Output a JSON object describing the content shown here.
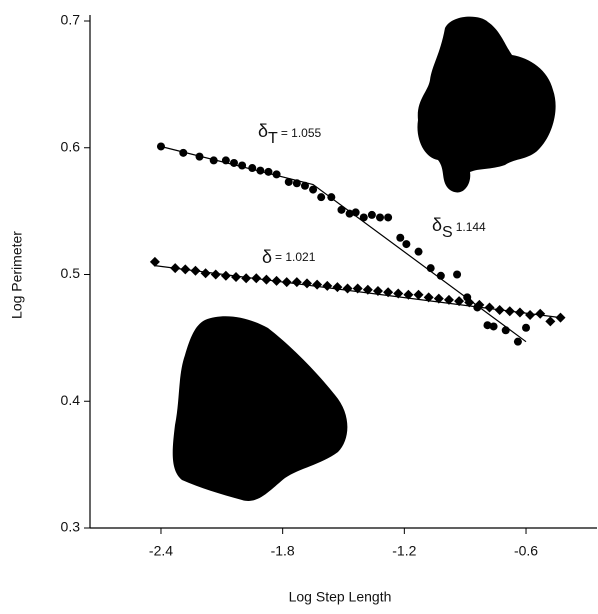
{
  "chart_data": {
    "type": "scatter",
    "x_label": "Log Step Length",
    "y_label": "Log Perimeter",
    "xlim": [
      -2.75,
      -0.25
    ],
    "ylim": [
      0.3,
      0.7
    ],
    "xticks": [
      -2.4,
      -1.8,
      -1.2,
      -0.6
    ],
    "yticks": [
      0.3,
      0.4,
      0.5,
      0.6,
      0.7
    ],
    "series": [
      {
        "marker": "circle",
        "color": "#000000",
        "x": [
          -2.4,
          -2.29,
          -2.21,
          -2.14,
          -2.08,
          -2.04,
          -2.0,
          -1.95,
          -1.91,
          -1.87,
          -1.83,
          -1.77,
          -1.73,
          -1.69,
          -1.65,
          -1.61,
          -1.56,
          -1.51,
          -1.47,
          -1.44,
          -1.4,
          -1.36,
          -1.32,
          -1.28,
          -1.22,
          -1.19,
          -1.13,
          -1.07,
          -1.02,
          -0.94,
          -0.89,
          -0.84,
          -0.79,
          -0.76,
          -0.7,
          -0.64,
          -0.6
        ],
        "values": [
          0.601,
          0.596,
          0.593,
          0.59,
          0.59,
          0.588,
          0.586,
          0.584,
          0.582,
          0.581,
          0.579,
          0.573,
          0.572,
          0.57,
          0.567,
          0.561,
          0.561,
          0.551,
          0.548,
          0.549,
          0.545,
          0.547,
          0.545,
          0.545,
          0.529,
          0.524,
          0.518,
          0.505,
          0.499,
          0.5,
          0.482,
          0.474,
          0.46,
          0.459,
          0.456,
          0.447,
          0.458
        ],
        "fit_x": [
          -2.4,
          -1.65,
          -0.6
        ],
        "fit_y": [
          0.601,
          0.571,
          0.447
        ]
      },
      {
        "marker": "diamond",
        "color": "#000000",
        "x": [
          -2.43,
          -2.33,
          -2.28,
          -2.23,
          -2.18,
          -2.13,
          -2.08,
          -2.03,
          -1.98,
          -1.93,
          -1.88,
          -1.83,
          -1.78,
          -1.73,
          -1.68,
          -1.63,
          -1.58,
          -1.53,
          -1.48,
          -1.43,
          -1.38,
          -1.33,
          -1.28,
          -1.23,
          -1.18,
          -1.13,
          -1.08,
          -1.03,
          -0.98,
          -0.93,
          -0.88,
          -0.83,
          -0.78,
          -0.73,
          -0.68,
          -0.63,
          -0.58,
          -0.53,
          -0.48,
          -0.43
        ],
        "values": [
          0.51,
          0.505,
          0.504,
          0.503,
          0.501,
          0.5,
          0.499,
          0.498,
          0.497,
          0.497,
          0.496,
          0.495,
          0.494,
          0.494,
          0.493,
          0.492,
          0.491,
          0.49,
          0.489,
          0.489,
          0.488,
          0.487,
          0.486,
          0.485,
          0.484,
          0.484,
          0.482,
          0.481,
          0.48,
          0.479,
          0.478,
          0.476,
          0.474,
          0.472,
          0.471,
          0.47,
          0.468,
          0.469,
          0.463,
          0.466
        ],
        "fit_x": [
          -2.43,
          -0.43
        ],
        "fit_y": [
          0.507,
          0.466
        ]
      }
    ],
    "annotations": [
      {
        "symbol": "δ",
        "subscript": "T",
        "text": "= 1.055"
      },
      {
        "symbol": "δ",
        "subscript": "S",
        "text": "1.144"
      },
      {
        "symbol": "δ",
        "text": "= 1.021"
      }
    ]
  }
}
